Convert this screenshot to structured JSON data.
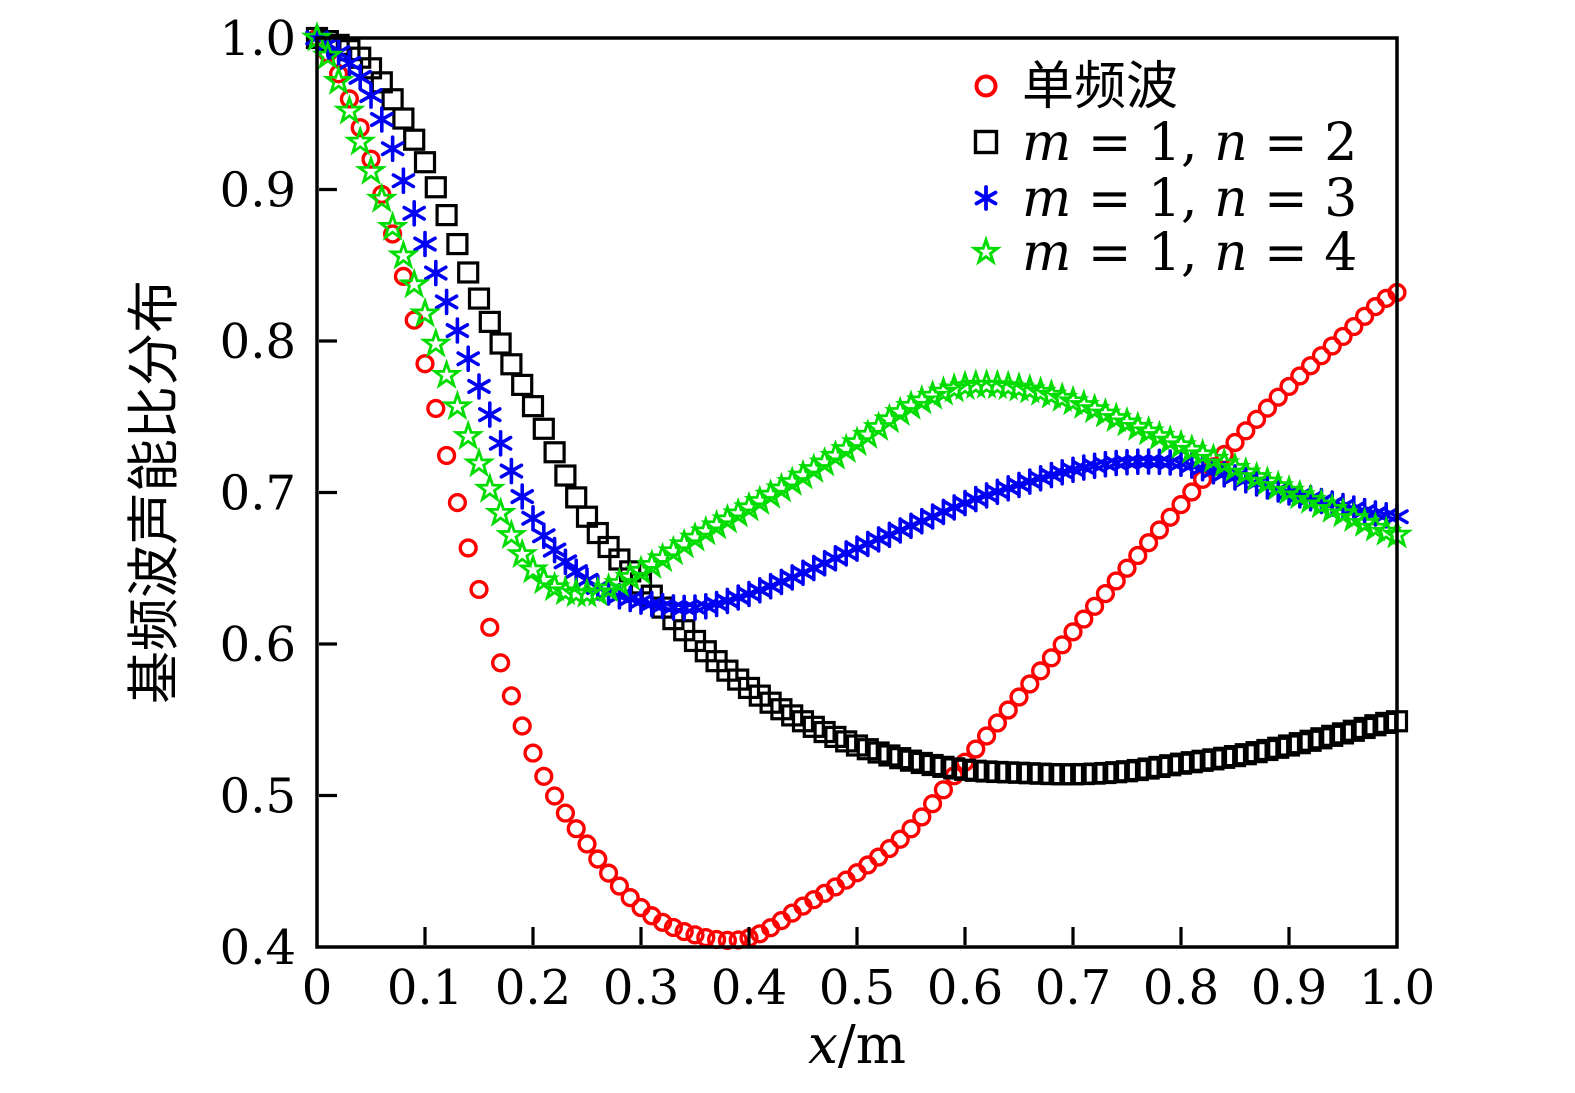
{
  "page": {
    "background": "#ffffff"
  },
  "axes": {
    "frame_color": "#000000",
    "xlabel_var": "x",
    "xlabel_unit": "/m",
    "ylabel": "基频波声能比分布"
  },
  "chart_data": {
    "type": "scatter",
    "title": "",
    "xlabel": "x/m",
    "ylabel": "基频波声能比分布",
    "xlim": [
      0,
      1.0
    ],
    "ylim": [
      0.4,
      1.0
    ],
    "grid": false,
    "legend_position": "upper right",
    "x_ticks": {
      "values": [
        0,
        0.1,
        0.2,
        0.3,
        0.4,
        0.5,
        0.6,
        0.7,
        0.8,
        0.9,
        1.0
      ],
      "labels": [
        "0",
        "0.1",
        "0.2",
        "0.3",
        "0.4",
        "0.5",
        "0.6",
        "0.7",
        "0.8",
        "0.9",
        "1.0"
      ]
    },
    "y_ticks": {
      "values": [
        0.4,
        0.5,
        0.6,
        0.7,
        0.8,
        0.9,
        1.0
      ],
      "labels": [
        "0.4",
        "0.5",
        "0.6",
        "0.7",
        "0.8",
        "0.9",
        "1.0"
      ]
    },
    "sampling": {
      "x_start": 0,
      "x_step": 0.05,
      "marker_x_step": 0.01
    },
    "series": [
      {
        "name": "单频波",
        "name_is_math": false,
        "marker": "circle",
        "color": "#ff0000",
        "values": [
          1.0,
          0.92,
          0.785,
          0.636,
          0.528,
          0.468,
          0.426,
          0.408,
          0.406,
          0.427,
          0.449,
          0.478,
          0.522,
          0.565,
          0.608,
          0.65,
          0.692,
          0.733,
          0.77,
          0.803,
          0.832
        ]
      },
      {
        "name": "m = 1, n = 2",
        "name_is_math": true,
        "marker": "square",
        "color": "#000000",
        "values": [
          1.0,
          0.98,
          0.918,
          0.828,
          0.757,
          0.684,
          0.64,
          0.602,
          0.571,
          0.549,
          0.533,
          0.523,
          0.517,
          0.515,
          0.514,
          0.516,
          0.521,
          0.526,
          0.533,
          0.541,
          0.549
        ]
      },
      {
        "name": "m = 1, n = 3",
        "name_is_math": true,
        "marker": "asterisk",
        "color": "#0000f2",
        "values": [
          1.0,
          0.962,
          0.864,
          0.77,
          0.683,
          0.642,
          0.628,
          0.624,
          0.633,
          0.647,
          0.663,
          0.678,
          0.693,
          0.705,
          0.715,
          0.72,
          0.719,
          0.71,
          0.7,
          0.691,
          0.684
        ]
      },
      {
        "name": "m = 1, n = 4",
        "name_is_math": true,
        "marker": "star5",
        "color": "#00dc00",
        "values": [
          1.0,
          0.912,
          0.818,
          0.719,
          0.649,
          0.633,
          0.648,
          0.67,
          0.69,
          0.711,
          0.733,
          0.757,
          0.77,
          0.769,
          0.76,
          0.746,
          0.731,
          0.716,
          0.701,
          0.686,
          0.672
        ]
      }
    ]
  }
}
